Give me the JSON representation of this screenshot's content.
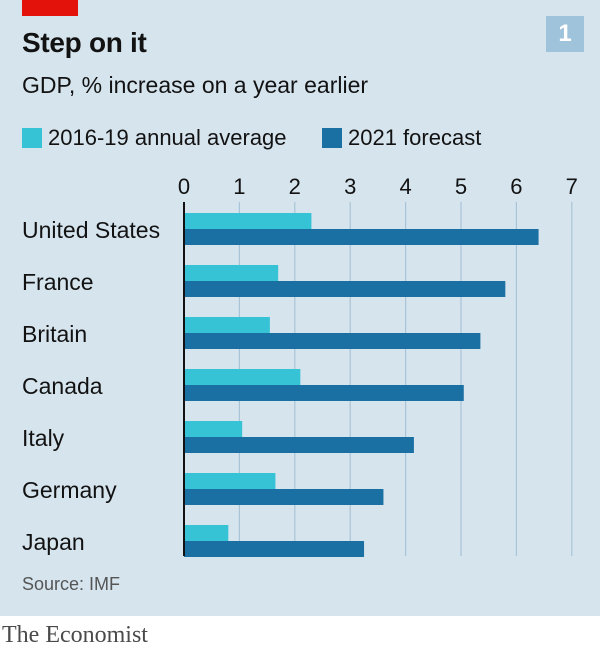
{
  "header": {
    "badge": "1"
  },
  "colors": {
    "background": "#d6e4ee",
    "accent_red": "#e3120b",
    "series_light": "#36c3d6",
    "series_dark": "#1a6fa3"
  },
  "chart_data": {
    "type": "bar",
    "orientation": "horizontal",
    "title": "Step on it",
    "subtitle": "GDP, % increase on a year earlier",
    "categories": [
      "United States",
      "France",
      "Britain",
      "Canada",
      "Italy",
      "Germany",
      "Japan"
    ],
    "series": [
      {
        "name": "2016-19 annual average",
        "values": [
          2.3,
          1.7,
          1.55,
          2.1,
          1.05,
          1.65,
          0.8
        ]
      },
      {
        "name": "2021 forecast",
        "values": [
          6.4,
          5.8,
          5.35,
          5.05,
          4.15,
          3.6,
          3.25
        ]
      }
    ],
    "xlim": [
      0,
      7
    ],
    "ticks": [
      "0",
      "1",
      "2",
      "3",
      "4",
      "5",
      "6",
      "7"
    ],
    "xlabel": "",
    "ylabel": "",
    "legend_position": "top",
    "source": "Source: IMF"
  },
  "footer": {
    "brand": "The Economist"
  }
}
